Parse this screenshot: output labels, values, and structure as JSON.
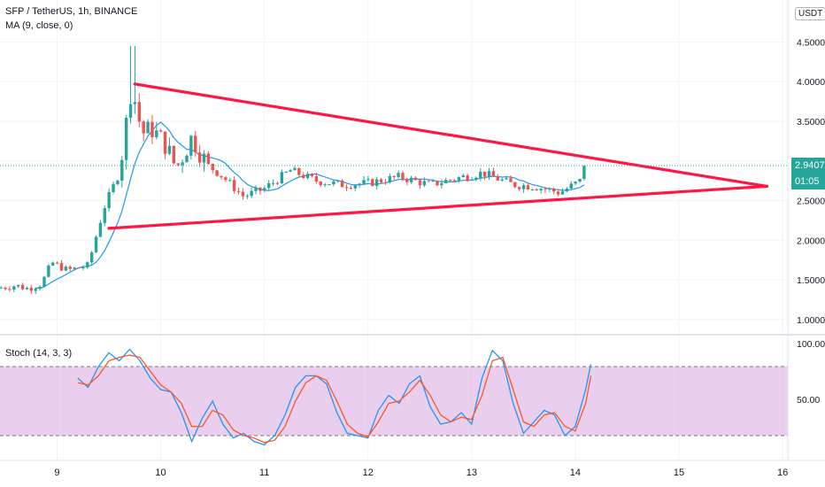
{
  "header": {
    "symbol_line": "SFP / TetherUS, 1h, BINANCE",
    "ma_line": "MA (9, close, 0)",
    "stoch_line": "Stoch (14, 3, 3)",
    "currency": "USDT"
  },
  "last_price": {
    "price": "2.9407",
    "countdown": "01:05",
    "color": "#26a69a"
  },
  "chart_data": [
    {
      "type": "candlestick",
      "x_ticks": [
        "9",
        "10",
        "11",
        "12",
        "13",
        "14",
        "15",
        "16"
      ],
      "y_ticks": [
        "4.5000",
        "4.0000",
        "3.5000",
        "3.0000",
        "2.5000",
        "2.0000",
        "1.5000",
        "1.0000"
      ],
      "ylim": [
        0.92,
        4.65
      ],
      "xlim": [
        8.45,
        16.05
      ],
      "up_color": "#26a69a",
      "down_color": "#ef5350",
      "ma_color": "#2196f3",
      "anchors": [
        {
          "t": 8.45,
          "p": 1.4
        },
        {
          "t": 8.6,
          "p": 1.43
        },
        {
          "t": 8.72,
          "p": 1.39
        },
        {
          "t": 8.85,
          "p": 1.45
        },
        {
          "t": 8.95,
          "p": 1.72
        },
        {
          "t": 9.1,
          "p": 1.62
        },
        {
          "t": 9.3,
          "p": 1.68
        },
        {
          "t": 9.45,
          "p": 2.4
        },
        {
          "t": 9.6,
          "p": 2.85
        },
        {
          "t": 9.72,
          "p": 3.95
        },
        {
          "t": 9.82,
          "p": 3.35
        },
        {
          "t": 9.92,
          "p": 3.4
        },
        {
          "t": 10.05,
          "p": 3.2
        },
        {
          "t": 10.15,
          "p": 2.9
        },
        {
          "t": 10.3,
          "p": 3.3
        },
        {
          "t": 10.45,
          "p": 2.95
        },
        {
          "t": 10.6,
          "p": 2.8
        },
        {
          "t": 10.8,
          "p": 2.55
        },
        {
          "t": 11.0,
          "p": 2.65
        },
        {
          "t": 11.25,
          "p": 2.88
        },
        {
          "t": 11.5,
          "p": 2.75
        },
        {
          "t": 11.75,
          "p": 2.7
        },
        {
          "t": 12.0,
          "p": 2.72
        },
        {
          "t": 12.3,
          "p": 2.8
        },
        {
          "t": 12.6,
          "p": 2.7
        },
        {
          "t": 12.85,
          "p": 2.78
        },
        {
          "t": 13.1,
          "p": 2.85
        },
        {
          "t": 13.4,
          "p": 2.7
        },
        {
          "t": 13.6,
          "p": 2.68
        },
        {
          "t": 13.85,
          "p": 2.6
        },
        {
          "t": 14.05,
          "p": 2.75
        },
        {
          "t": 14.12,
          "p": 2.94
        }
      ],
      "trendlines": [
        {
          "name": "triangle-upper-line",
          "from": {
            "t": 9.75,
            "p": 3.97
          },
          "to": {
            "t": 15.85,
            "p": 2.68
          },
          "color": "#ff1744"
        },
        {
          "name": "triangle-lower-line",
          "from": {
            "t": 9.5,
            "p": 2.15
          },
          "to": {
            "t": 15.85,
            "p": 2.68
          },
          "color": "#ff1744"
        }
      ]
    },
    {
      "type": "line",
      "name": "Stoch",
      "y_ticks": [
        "100.00",
        "50.00"
      ],
      "ylim": [
        0,
        100
      ],
      "band": [
        20,
        80
      ],
      "band_color": "#e1bee7",
      "series": [
        {
          "color": "#2196f3",
          "x": [
            9.2,
            9.3,
            9.4,
            9.5,
            9.6,
            9.7,
            9.8,
            9.9,
            10.0,
            10.1,
            10.2,
            10.3,
            10.4,
            10.5,
            10.6,
            10.7,
            10.8,
            10.9,
            11.0,
            11.1,
            11.2,
            11.3,
            11.4,
            11.5,
            11.6,
            11.7,
            11.8,
            11.9,
            12.0,
            12.1,
            12.2,
            12.3,
            12.4,
            12.5,
            12.6,
            12.7,
            12.8,
            12.9,
            13.0,
            13.1,
            13.2,
            13.3,
            13.4,
            13.5,
            13.6,
            13.7,
            13.8,
            13.9,
            14.0,
            14.1,
            14.15
          ],
          "values": [
            70,
            62,
            80,
            92,
            85,
            95,
            85,
            70,
            60,
            58,
            40,
            15,
            35,
            50,
            30,
            18,
            22,
            15,
            12,
            20,
            38,
            62,
            72,
            72,
            65,
            40,
            22,
            20,
            18,
            42,
            55,
            48,
            65,
            72,
            45,
            30,
            32,
            40,
            30,
            70,
            94,
            85,
            48,
            22,
            32,
            42,
            38,
            20,
            28,
            60,
            82
          ]
        },
        {
          "color": "#ff5722",
          "x": [
            9.2,
            9.3,
            9.4,
            9.5,
            9.6,
            9.7,
            9.8,
            9.9,
            10.0,
            10.1,
            10.2,
            10.3,
            10.4,
            10.5,
            10.6,
            10.7,
            10.8,
            10.9,
            11.0,
            11.1,
            11.2,
            11.3,
            11.4,
            11.5,
            11.6,
            11.7,
            11.8,
            11.9,
            12.0,
            12.1,
            12.2,
            12.3,
            12.4,
            12.5,
            12.6,
            12.7,
            12.8,
            12.9,
            13.0,
            13.1,
            13.2,
            13.3,
            13.4,
            13.5,
            13.6,
            13.7,
            13.8,
            13.9,
            14.0,
            14.1,
            14.15
          ],
          "values": [
            66,
            64,
            72,
            85,
            88,
            90,
            88,
            76,
            64,
            58,
            48,
            28,
            28,
            42,
            38,
            25,
            20,
            18,
            14,
            16,
            28,
            50,
            66,
            72,
            68,
            50,
            30,
            22,
            19,
            32,
            48,
            50,
            58,
            68,
            55,
            38,
            32,
            36,
            34,
            55,
            85,
            88,
            60,
            32,
            28,
            38,
            40,
            28,
            24,
            48,
            72
          ]
        }
      ]
    }
  ]
}
